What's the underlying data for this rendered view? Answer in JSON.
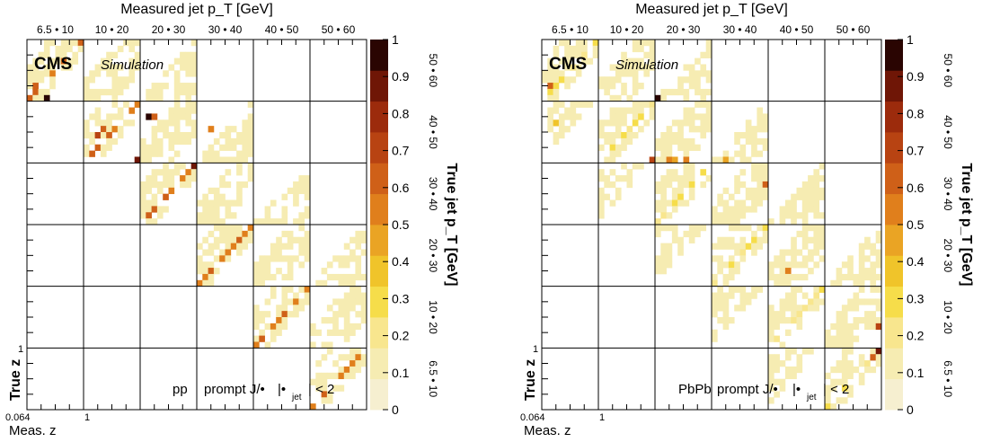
{
  "colors": {
    "palette": [
      "#f6efd0",
      "#f6ecb2",
      "#f8e68e",
      "#f6dd4a",
      "#f0c42a",
      "#eaa424",
      "#e07f1c",
      "#cf6018",
      "#b84312",
      "#9c2b0c",
      "#6f1606",
      "#2a0502"
    ],
    "grid": "#000000",
    "background": "#ffffff"
  },
  "chart_data": [
    {
      "type": "heatmap",
      "title": "Measured jet p_T [GeV]",
      "xlabel": "Meas. z",
      "ylabel": "True z",
      "right_label": "True jet p_T [GeV]",
      "top_bin_labels": [
        "6.5 • 10",
        "10 • 20",
        "20 • 30",
        "30 • 40",
        "40 • 50",
        "50 • 60"
      ],
      "right_bin_labels": [
        "6.5 • 10",
        "10 • 20",
        "20 • 30",
        "30 • 40",
        "40 • 50",
        "50 • 60"
      ],
      "x_ticks": [
        "0.064",
        "1"
      ],
      "y_ticks": [
        "1"
      ],
      "colorbar": {
        "min": 0,
        "max": 1,
        "ticks": [
          "0",
          "0.1",
          "0.2",
          "0.3",
          "0.4",
          "0.5",
          "0.6",
          "0.7",
          "0.8",
          "0.9",
          "1"
        ]
      },
      "experiment": "CMS",
      "experiment_sub": "Simulation",
      "system": "pp",
      "selection": "prompt J/•",
      "eta_cut_prefix": "|•",
      "eta_cut_sub": "jet",
      "eta_cut_suffix": "| < 2",
      "grid_bins": 6,
      "sub_bins": 10,
      "mode": "pp",
      "peaks": [
        {
          "rb": 0,
          "cb": 0,
          "r": 9,
          "c": 3,
          "v": 1.0
        },
        {
          "rb": 0,
          "cb": 0,
          "r": 8,
          "c": 1,
          "v": 0.65
        },
        {
          "rb": 0,
          "cb": 0,
          "r": 7,
          "c": 1,
          "v": 0.6
        },
        {
          "rb": 1,
          "cb": 1,
          "r": 9,
          "c": 9,
          "v": 0.95
        },
        {
          "rb": 1,
          "cb": 1,
          "r": 5,
          "c": 2,
          "v": 0.7
        },
        {
          "rb": 1,
          "cb": 1,
          "r": 4,
          "c": 3,
          "v": 0.6
        },
        {
          "rb": 1,
          "cb": 2,
          "r": 2,
          "c": 1,
          "v": 1.0
        },
        {
          "rb": 1,
          "cb": 2,
          "r": 2,
          "c": 2,
          "v": 0.65
        },
        {
          "rb": 1,
          "cb": 3,
          "r": 4,
          "c": 2,
          "v": 0.55
        },
        {
          "rb": 2,
          "cb": 2,
          "r": 0,
          "c": 9,
          "v": 0.95
        }
      ]
    },
    {
      "type": "heatmap",
      "title": "Measured jet p_T [GeV]",
      "xlabel": "Meas. z",
      "ylabel": "True z",
      "right_label": "True jet p_T [GeV]",
      "top_bin_labels": [
        "6.5 • 10",
        "10 • 20",
        "20 • 30",
        "30 • 40",
        "40 • 50",
        "50 • 60"
      ],
      "right_bin_labels": [
        "6.5 • 10",
        "10 • 20",
        "20 • 30",
        "30 • 40",
        "40 • 50",
        "50 • 60"
      ],
      "x_ticks": [
        "0.064",
        "1"
      ],
      "y_ticks": [
        "1"
      ],
      "colorbar": {
        "min": 0,
        "max": 1,
        "ticks": [
          "0",
          "0.1",
          "0.2",
          "0.3",
          "0.4",
          "0.5",
          "0.6",
          "0.7",
          "0.8",
          "0.9",
          "1"
        ]
      },
      "experiment": "CMS",
      "experiment_sub": "Simulation",
      "system": "PbPb",
      "selection": "prompt J/•",
      "eta_cut_prefix": "|•",
      "eta_cut_sub": "jet",
      "eta_cut_suffix": "| < 2",
      "grid_bins": 6,
      "sub_bins": 10,
      "mode": "pbpb",
      "peaks": [
        {
          "rb": 0,
          "cb": 2,
          "r": 9,
          "c": 0,
          "v": 1.0
        },
        {
          "rb": 0,
          "cb": 0,
          "r": 7,
          "c": 1,
          "v": 0.6
        },
        {
          "rb": 0,
          "cb": 4,
          "r": 3,
          "c": 5,
          "v": 0.6
        },
        {
          "rb": 1,
          "cb": 1,
          "r": 9,
          "c": 9,
          "v": 0.75
        },
        {
          "rb": 1,
          "cb": 2,
          "r": 9,
          "c": 2,
          "v": 0.5
        },
        {
          "rb": 1,
          "cb": 2,
          "r": 9,
          "c": 3,
          "v": 0.45
        },
        {
          "rb": 1,
          "cb": 2,
          "r": 9,
          "c": 5,
          "v": 0.55
        },
        {
          "rb": 1,
          "cb": 3,
          "r": 9,
          "c": 2,
          "v": 0.45
        },
        {
          "rb": 1,
          "cb": 0,
          "r": 3,
          "c": 2,
          "v": 0.4
        },
        {
          "rb": 2,
          "cb": 3,
          "r": 3,
          "c": 9,
          "v": 0.6
        },
        {
          "rb": 3,
          "cb": 4,
          "r": 7,
          "c": 3,
          "v": 0.5
        },
        {
          "rb": 4,
          "cb": 5,
          "r": 6,
          "c": 9,
          "v": 0.7
        },
        {
          "rb": 5,
          "cb": 5,
          "r": 0,
          "c": 9,
          "v": 0.9
        },
        {
          "rb": 5,
          "cb": 5,
          "r": 1,
          "c": 8,
          "v": 0.6
        }
      ]
    }
  ]
}
